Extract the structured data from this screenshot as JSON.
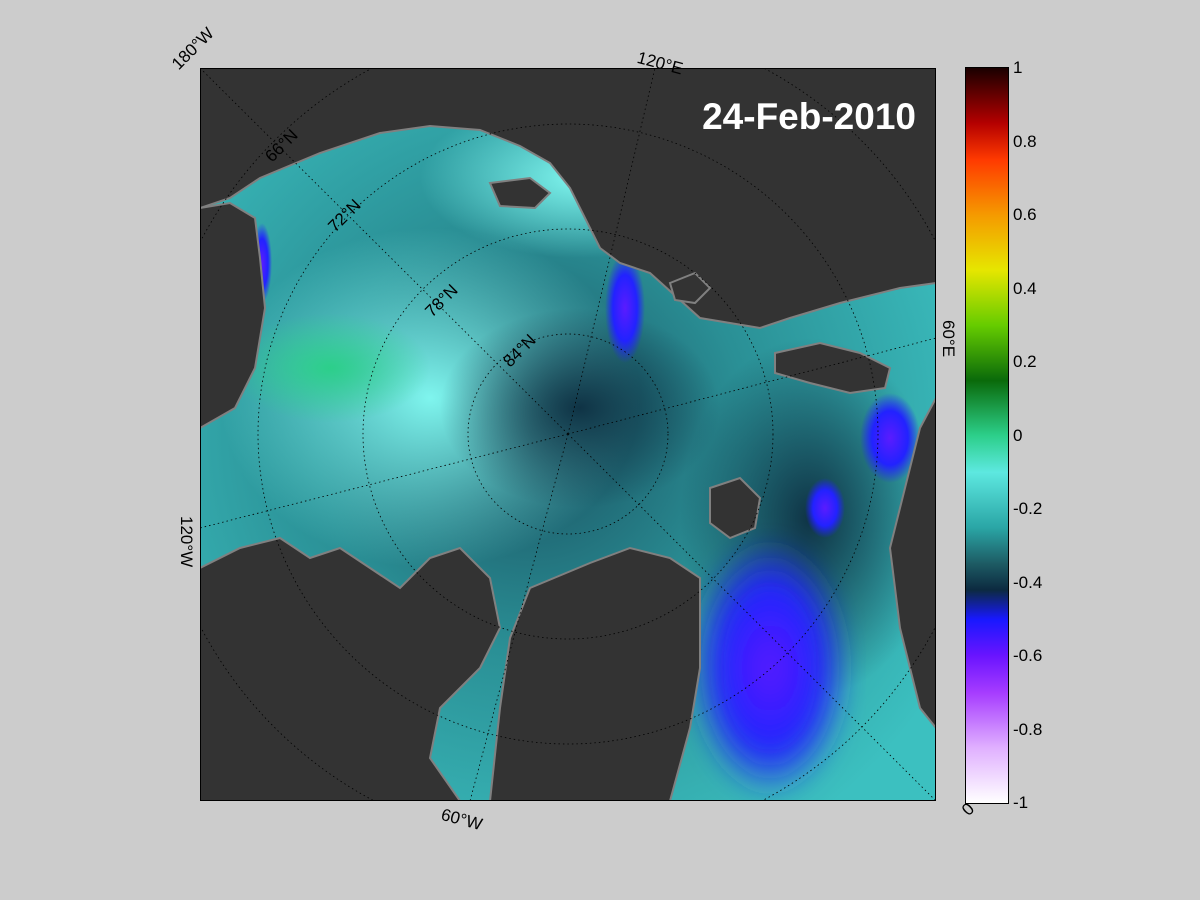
{
  "map": {
    "date_label": "24-Feb-2010",
    "projection": "polar stereographic, north pole centered",
    "longitude_labels": {
      "top_left": "180°W",
      "top_right": "120°E",
      "right": "60°E",
      "bottom_right": "0°",
      "bottom": "60°W",
      "left": "120°W"
    },
    "latitude_labels": [
      "66°N",
      "72°N",
      "78°N",
      "84°N"
    ],
    "colors": {
      "land": "#333333",
      "land_edge": "#808080",
      "background": "#cccccc"
    }
  },
  "colorbar": {
    "min": -1,
    "max": 1,
    "tick_labels": [
      "1",
      "0.8",
      "0.6",
      "0.4",
      "0.2",
      "0",
      "-0.2",
      "-0.4",
      "-0.6",
      "-0.8",
      "-1"
    ],
    "tick_values": [
      1,
      0.8,
      0.6,
      0.4,
      0.2,
      0,
      -0.2,
      -0.4,
      -0.6,
      -0.8,
      -1
    ],
    "gradient_stops": [
      {
        "value": 1.0,
        "color": "#1a0000"
      },
      {
        "value": 0.85,
        "color": "#b40000"
      },
      {
        "value": 0.75,
        "color": "#ff3a00"
      },
      {
        "value": 0.6,
        "color": "#f59a00"
      },
      {
        "value": 0.45,
        "color": "#e6e600"
      },
      {
        "value": 0.3,
        "color": "#66cc00"
      },
      {
        "value": 0.15,
        "color": "#0a6a0a"
      },
      {
        "value": 0.0,
        "color": "#2ccf8a"
      },
      {
        "value": -0.1,
        "color": "#5de8e0"
      },
      {
        "value": -0.25,
        "color": "#2aa6a6"
      },
      {
        "value": -0.35,
        "color": "#1d5a63"
      },
      {
        "value": -0.42,
        "color": "#0c2a40"
      },
      {
        "value": -0.5,
        "color": "#1818ff"
      },
      {
        "value": -0.6,
        "color": "#6a14ff"
      },
      {
        "value": -0.7,
        "color": "#a63cff"
      },
      {
        "value": -0.85,
        "color": "#e0b0ff"
      },
      {
        "value": -1.0,
        "color": "#ffffff"
      }
    ]
  }
}
